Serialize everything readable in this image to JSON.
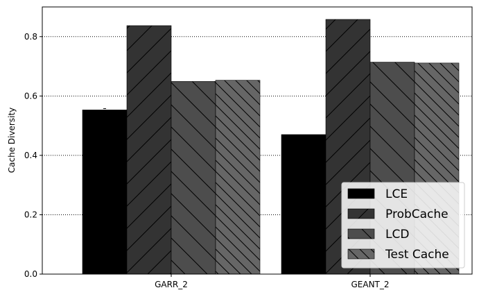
{
  "chart_data": {
    "type": "bar",
    "title": "",
    "xlabel": "",
    "ylabel": "Cache Diversity",
    "ylim": [
      0,
      0.9
    ],
    "yticks": [
      "0.0",
      "0.2",
      "0.4",
      "0.6",
      "0.8"
    ],
    "categories": [
      "GARR_2",
      "GEANT_2"
    ],
    "grid": "horizontal dotted",
    "legend_position": "bottom-right",
    "series": [
      {
        "name": "LCE",
        "values": [
          0.553,
          0.47
        ],
        "color": "#000000",
        "hatch": "none"
      },
      {
        "name": "ProbCache",
        "values": [
          0.837,
          0.858
        ],
        "color": "#333333",
        "hatch": "/"
      },
      {
        "name": "LCD",
        "values": [
          0.649,
          0.714
        ],
        "color": "#4d4d4d",
        "hatch": "\\"
      },
      {
        "name": "Test Cache",
        "values": [
          0.653,
          0.711
        ],
        "color": "#666666",
        "hatch": "\\\\"
      }
    ]
  }
}
